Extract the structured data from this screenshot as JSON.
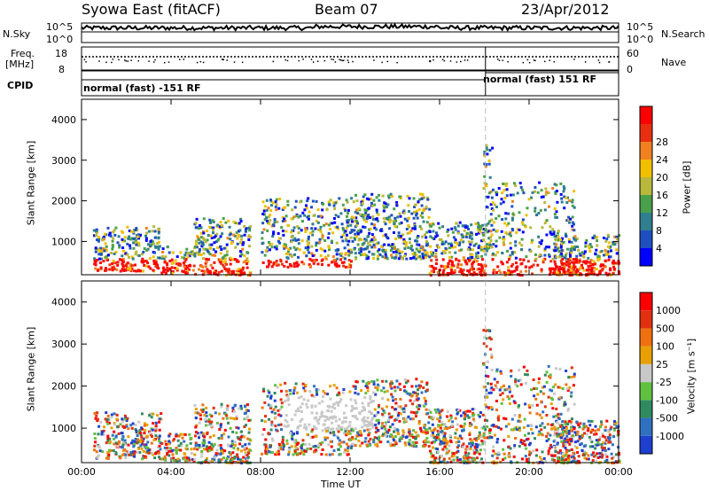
{
  "header": {
    "station": "Syowa East (fitACF)",
    "beam": "Beam 07",
    "date": "23/Apr/2012"
  },
  "nsky_panel": {
    "left_label": "N.Sky",
    "right_label": "N.Search",
    "tick_top": "10^5",
    "tick_bottom": "10^0",
    "right_tick_top": "10^5",
    "right_tick_bottom": "10^0"
  },
  "freq_panel": {
    "left_label_1": "Freq.",
    "left_label_2": "[MHz]",
    "tick_top": "18",
    "tick_bottom": "8",
    "right_label": "Nave",
    "right_tick_top": "60",
    "right_tick_bottom": "0"
  },
  "cpid_panel": {
    "label": "CPID",
    "mode_1": "normal (fast) -151 RF",
    "mode_2": "normal (fast) 151 RF"
  },
  "chart_data": {
    "type": "heatmap",
    "xlabel": "Time UT",
    "x_ticks": [
      "00:00",
      "04:00",
      "08:00",
      "12:00",
      "16:00",
      "20:00",
      "00:00"
    ],
    "x_range_hours": [
      0,
      24
    ],
    "panels": [
      {
        "name": "power",
        "ylabel": "Slant Range [km]",
        "ylim": [
          180,
          4500
        ],
        "y_ticks": [
          1000,
          2000,
          3000,
          4000
        ],
        "colorbar_label": "Power [dB]",
        "colorbar_ticks": [
          "4",
          "8",
          "12",
          "16",
          "20",
          "24",
          "28"
        ],
        "colorbar_colors": [
          "#0000ff",
          "#1f4fbf",
          "#2f7f8f",
          "#4aa04a",
          "#b8b83a",
          "#f0c000",
          "#f08020",
          "#e83010",
          "#ff0000"
        ]
      },
      {
        "name": "velocity",
        "ylabel": "Slant Range [km]",
        "ylim": [
          180,
          4500
        ],
        "y_ticks": [
          1000,
          2000,
          3000,
          4000
        ],
        "colorbar_label": "Velocity [m s⁻¹]",
        "colorbar_ticks": [
          "1000",
          "500",
          "100",
          "25",
          "-25",
          "-100",
          "-500",
          "-1000"
        ],
        "colorbar_colors": [
          "#1f3fcf",
          "#3070c0",
          "#308a60",
          "#60c040",
          "#c8c8c8",
          "#e8a000",
          "#f07010",
          "#e03010",
          "#ff0000"
        ]
      }
    ],
    "cpid_change_hour": 18.05
  }
}
